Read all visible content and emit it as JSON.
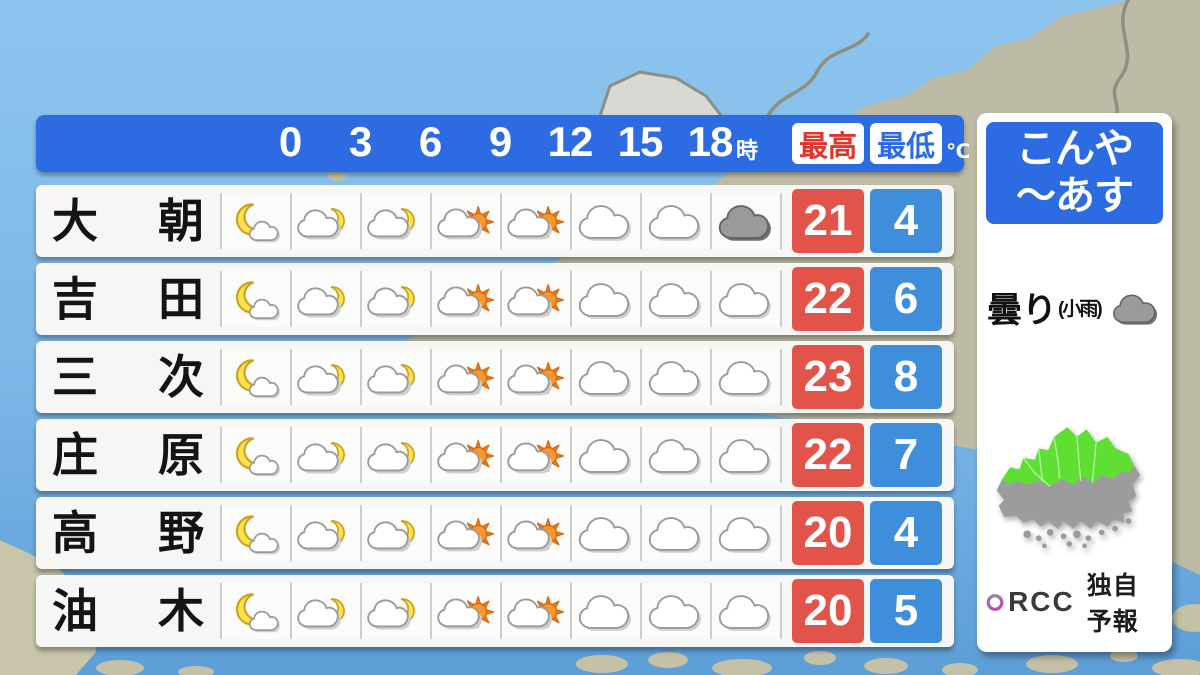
{
  "chart_data": {
    "type": "table",
    "title": "こんや～あす",
    "time_labels": [
      "0",
      "3",
      "6",
      "9",
      "12",
      "15",
      "18"
    ],
    "time_suffix": "時",
    "col_max": "最高",
    "col_min": "最低",
    "unit": "℃",
    "rows": [
      {
        "location": "大朝",
        "icons": [
          "moon-cloud",
          "cloud-moon",
          "cloud-moon",
          "cloud-sun",
          "cloud-sun",
          "cloudy",
          "cloudy",
          "dark-cloud"
        ],
        "max": "21",
        "min": "4"
      },
      {
        "location": "吉田",
        "icons": [
          "moon-cloud",
          "cloud-moon",
          "cloud-moon",
          "cloud-sun",
          "cloud-sun",
          "cloudy",
          "cloudy",
          "cloudy"
        ],
        "max": "22",
        "min": "6"
      },
      {
        "location": "三次",
        "icons": [
          "moon-cloud",
          "cloud-moon",
          "cloud-moon",
          "cloud-sun",
          "cloud-sun",
          "cloudy",
          "cloudy",
          "cloudy"
        ],
        "max": "23",
        "min": "8"
      },
      {
        "location": "庄原",
        "icons": [
          "moon-cloud",
          "cloud-moon",
          "cloud-moon",
          "cloud-sun",
          "cloud-sun",
          "cloudy",
          "cloudy",
          "cloudy"
        ],
        "max": "22",
        "min": "7"
      },
      {
        "location": "高野",
        "icons": [
          "moon-cloud",
          "cloud-moon",
          "cloud-moon",
          "cloud-sun",
          "cloud-sun",
          "cloudy",
          "cloudy",
          "cloudy"
        ],
        "max": "20",
        "min": "4"
      },
      {
        "location": "油木",
        "icons": [
          "moon-cloud",
          "cloud-moon",
          "cloud-moon",
          "cloud-sun",
          "cloud-sun",
          "cloudy",
          "cloudy",
          "cloudy"
        ],
        "max": "20",
        "min": "5"
      }
    ]
  },
  "panel": {
    "title_line1": "こんや",
    "title_line2": "～あす",
    "condition": "曇り",
    "condition_note": "(小雨)",
    "condition_icon": "dark-cloud",
    "logo": "RCC",
    "logo_note": "独自予報"
  },
  "colors": {
    "header_blue": "#2c6be2",
    "max_temp_red": "#e2544a",
    "min_temp_blue": "#3f8edc",
    "max_label_red": "#e0352b",
    "map_highlight_green": "#5fdf33",
    "map_gray": "#9c9c9c"
  }
}
